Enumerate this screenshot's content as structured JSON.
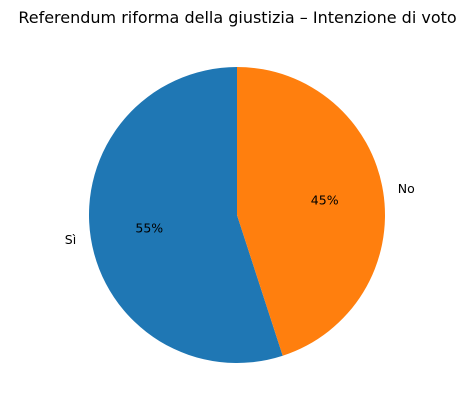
{
  "chart_data": {
    "type": "pie",
    "title": "Referendum riforma della giustizia – Intenzione di voto",
    "categories": [
      "Sì",
      "No"
    ],
    "values": [
      55,
      45
    ],
    "percent_labels": [
      "55%",
      "45%"
    ],
    "colors": [
      "#1f77b4",
      "#ff7f0e"
    ],
    "start_angle_deg": 90,
    "direction": "counterclockwise",
    "legend": "none"
  }
}
